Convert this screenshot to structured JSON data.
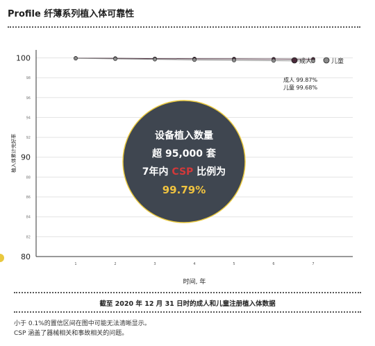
{
  "header": {
    "title": "Profile 纤薄系列植入体可靠性"
  },
  "chart_data": {
    "type": "line",
    "title": "",
    "xlabel": "时间, 年",
    "ylabel": "植入体累计完好率",
    "x": [
      1,
      2,
      3,
      4,
      5,
      6,
      7
    ],
    "ylim": [
      80,
      100.8
    ],
    "y_ticks": [
      80,
      82,
      84,
      86,
      88,
      90,
      92,
      94,
      96,
      98,
      100
    ],
    "y_tick_labels": [
      "80",
      "82",
      "84",
      "86",
      "88",
      "90",
      "92",
      "94",
      "96",
      "98",
      "100"
    ],
    "series": [
      {
        "name": "成人",
        "color": "#4a2a3a",
        "values": [
          99.97,
          99.95,
          99.92,
          99.91,
          99.9,
          99.88,
          99.87
        ],
        "end_label": "成人 99.87%"
      },
      {
        "name": "儿童",
        "color": "#8a8a8a",
        "values": [
          99.95,
          99.9,
          99.85,
          99.8,
          99.76,
          99.72,
          99.68
        ],
        "end_label": "儿童 99.68%"
      }
    ],
    "legend_position": "top-right",
    "grid": true
  },
  "callout": {
    "line1": "设备植入数量",
    "line2": "超 95,000 套",
    "line3_prefix": "7年内 ",
    "line3_highlight": "CSP",
    "line3_suffix": " 比例为",
    "line4": "99.79%",
    "highlight_color": "#d2393a",
    "value_color": "#f0c340",
    "background_color": "#3f4650",
    "border_color": "#e9c83e"
  },
  "caption": "截至 2020 年 12 月 31 日时的成人和儿童注册植入体数据",
  "footnotes": [
    "小于 0.1%的置信区间在图中可能无法清晰显示。",
    "CSP 涵盖了器械相关和事故相关的问题。"
  ]
}
